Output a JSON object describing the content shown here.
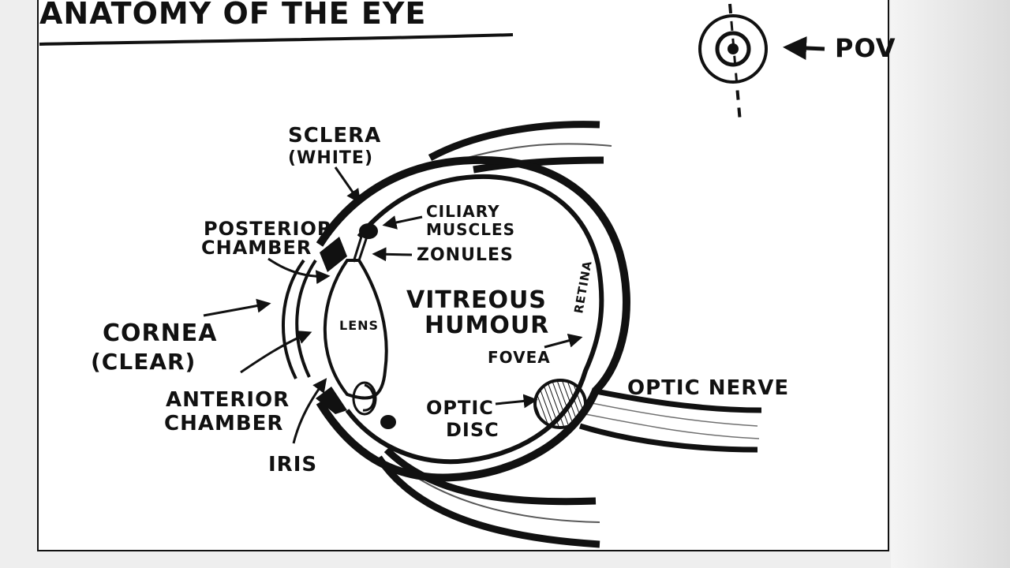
{
  "title": "ANATOMY OF THE EYE",
  "pov": {
    "label": "POV"
  },
  "labels": {
    "sclera": "SCLERA",
    "sclera_note": "(WHITE)",
    "posterior_chamber_1": "POSTERIOR",
    "posterior_chamber_2": "CHAMBER",
    "ciliary_1": "CILIARY",
    "ciliary_2": "MUSCLES",
    "zonules": "ZONULES",
    "cornea": "CORNEA",
    "cornea_note": "(CLEAR)",
    "lens": "LENS",
    "vitreous_1": "VITREOUS",
    "vitreous_2": "HUMOUR",
    "retina": "RETINA",
    "fovea": "FOVEA",
    "optic_disc_1": "OPTIC",
    "optic_disc_2": "DISC",
    "optic_nerve": "OPTIC NERVE",
    "anterior_chamber_1": "ANTERIOR",
    "anterior_chamber_2": "CHAMBER",
    "iris": "IRIS"
  },
  "colors": {
    "ink": "#111111",
    "paper": "#ffffff",
    "frame_bg": "#eeeeee"
  }
}
